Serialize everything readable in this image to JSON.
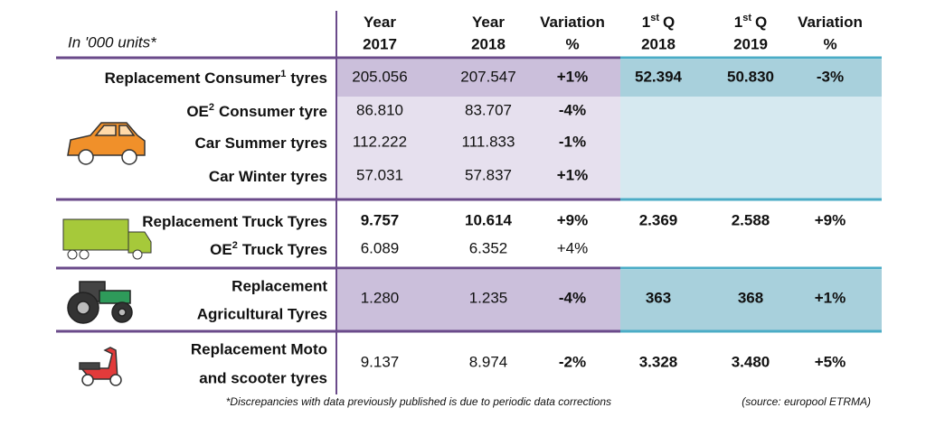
{
  "header": {
    "units": "In '000 units*",
    "columns": [
      {
        "line1": "Year",
        "line2": "2017"
      },
      {
        "line1": "Year",
        "line2": "2018"
      },
      {
        "line1": "Variation",
        "line2": "%"
      },
      {
        "ordinal": "1",
        "suffix": "st",
        "line1": "Q",
        "line2": "2018"
      },
      {
        "ordinal": "1",
        "suffix": "st",
        "line1": "Q",
        "line2": "2019"
      },
      {
        "line1": "Variation",
        "line2": "%"
      }
    ]
  },
  "table": {
    "rows": [
      {
        "label": {
          "text": "Replacement Consumer",
          "sup": "1",
          "after": "tyres"
        },
        "cells": [
          "205.056",
          "207.547",
          "+1%",
          "52.394",
          "50.830",
          "-3%"
        ]
      },
      {
        "label": {
          "text": "OE",
          "sup": "2",
          "after": "Consumer tyre"
        },
        "cells": [
          "86.810",
          "83.707",
          "-4%"
        ]
      },
      {
        "label": {
          "text": "Car Summer tyres"
        },
        "cells": [
          "112.222",
          "111.833",
          "-1%"
        ]
      },
      {
        "label": {
          "text": "Car Winter tyres"
        },
        "cells": [
          "57.031",
          "57.837",
          "+1%"
        ]
      },
      {
        "label": {
          "text": "Replacement Truck Tyres"
        },
        "cells": [
          "9.757",
          "10.614",
          "+9%",
          "2.369",
          "2.588",
          "+9%"
        ]
      },
      {
        "label": {
          "text": "OE",
          "sup": "2",
          "after": "Truck Tyres"
        },
        "cells": [
          "6.089",
          "6.352",
          "+4%"
        ]
      },
      {
        "label": {
          "lines": [
            "Replacement",
            "Agricultural Tyres"
          ]
        },
        "cells": [
          "1.280",
          "1.235",
          "-4%",
          "363",
          "368",
          "+1%"
        ]
      },
      {
        "label": {
          "lines": [
            "Replacement Moto",
            "and scooter tyres"
          ]
        },
        "cells": [
          "9.137",
          "8.974",
          "-2%",
          "3.328",
          "3.480",
          "+5%"
        ]
      }
    ]
  },
  "footer": {
    "note": "*Discrepancies with data previously published is due to periodic data corrections",
    "source": "(source: europool ETRMA)"
  }
}
